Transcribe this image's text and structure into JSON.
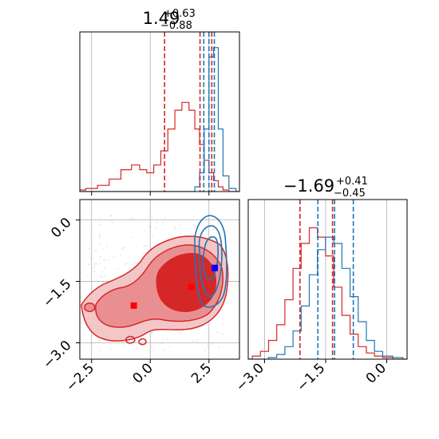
{
  "chart_data": {
    "type": "corner",
    "grid": true,
    "colors": {
      "series_a": "#d62728",
      "series_b": "#1f77b4",
      "grid": "#b0b0b0"
    },
    "series": [
      {
        "color": "#d62728"
      },
      {
        "color": "#1f77b4"
      }
    ],
    "panels": [
      {
        "id": "hist_param_1",
        "type": "histogram",
        "title": {
          "value": "1.49",
          "plus": "+0.63",
          "minus": "−0.88"
        },
        "xlim": [
          -3.0,
          3.8
        ],
        "xticks": [
          -2.5,
          0.0,
          2.5
        ],
        "quantiles": {
          "series_a": [
            0.61,
            2.12,
            2.62
          ],
          "series_b": [
            2.28,
            2.5,
            2.73
          ]
        },
        "x": [
          -3.0,
          -2.5,
          -2.0,
          -1.5,
          -1.0,
          -0.6,
          -0.3,
          0.0,
          0.3,
          0.6,
          0.9,
          1.2,
          1.5,
          1.8,
          2.0,
          2.2,
          2.4,
          2.6,
          2.8,
          3.0,
          3.2,
          3.5,
          3.8
        ],
        "series_values": {
          "series_a": [
            0.01,
            0.02,
            0.04,
            0.08,
            0.14,
            0.17,
            0.14,
            0.12,
            0.17,
            0.26,
            0.4,
            0.52,
            0.57,
            0.52,
            0.4,
            0.3,
            0.2,
            0.12,
            0.07,
            0.03,
            0.01,
            0.0,
            0.0
          ],
          "series_b": [
            0,
            0,
            0,
            0,
            0,
            0,
            0,
            0,
            0,
            0,
            0,
            0,
            0,
            0,
            0.03,
            0.12,
            0.4,
            0.86,
            0.92,
            0.4,
            0.1,
            0.02,
            0.0
          ]
        }
      },
      {
        "id": "hist_param_2",
        "type": "histogram",
        "title": {
          "value": "−1.69",
          "plus": "+0.41",
          "minus": "−0.45"
        },
        "xlim": [
          -3.4,
          0.5
        ],
        "xticks": [
          -3.0,
          -1.5,
          0.0
        ],
        "xtick_labels": [
          "−3.0",
          "−1.5",
          "0.0"
        ],
        "quantiles": {
          "series_a": [
            -2.13,
            -1.33
          ],
          "series_b": [
            -1.69,
            -1.28,
            -0.82
          ]
        },
        "x": [
          -3.4,
          -3.2,
          -3.0,
          -2.8,
          -2.6,
          -2.4,
          -2.2,
          -2.0,
          -1.8,
          -1.6,
          -1.4,
          -1.2,
          -1.0,
          -0.8,
          -0.6,
          -0.4,
          -0.2,
          0.0,
          0.3,
          0.5
        ],
        "series_values": {
          "series_a": [
            0.0,
            0.02,
            0.05,
            0.12,
            0.22,
            0.38,
            0.58,
            0.74,
            0.84,
            0.78,
            0.66,
            0.46,
            0.28,
            0.16,
            0.08,
            0.04,
            0.02,
            0.01,
            0.0,
            0.0
          ],
          "series_b": [
            0,
            0,
            0,
            0.01,
            0.03,
            0.08,
            0.18,
            0.34,
            0.54,
            0.7,
            0.78,
            0.74,
            0.58,
            0.4,
            0.24,
            0.12,
            0.05,
            0.02,
            0.01,
            0.0
          ]
        }
      },
      {
        "id": "contour_2d",
        "type": "2d-contour",
        "xlim": [
          -3.0,
          3.8
        ],
        "ylim": [
          -3.4,
          0.5
        ],
        "xticks": [
          -2.5,
          0.0,
          2.5
        ],
        "xtick_labels": [
          "−2.5",
          "0.0",
          "2.5"
        ],
        "yticks": [
          0.0,
          -1.5,
          -3.0
        ],
        "ytick_labels": [
          "0.0",
          "−1.5",
          "−3.0"
        ],
        "markers": [
          {
            "series": "series_a",
            "x": -0.7,
            "y": -2.09
          },
          {
            "series": "series_a",
            "x": 1.75,
            "y": -1.63
          },
          {
            "series": "series_b",
            "x": 2.75,
            "y": -1.17
          }
        ]
      }
    ]
  }
}
